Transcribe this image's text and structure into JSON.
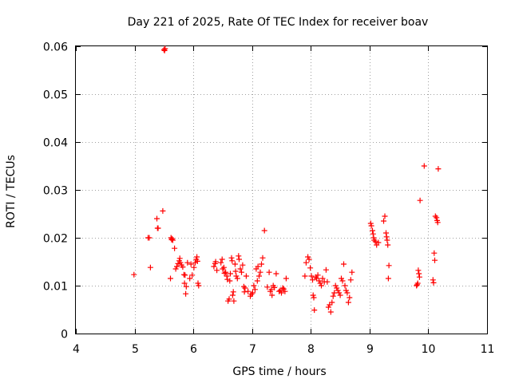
{
  "chart_data": {
    "type": "scatter",
    "title": "Day 221 of 2025, Rate Of TEC Index for receiver boav",
    "xlabel": "GPS time / hours",
    "ylabel": "ROTI / TECUs",
    "xlim": [
      4,
      11
    ],
    "ylim": [
      0,
      0.06
    ],
    "xticks": [
      4,
      5,
      6,
      7,
      8,
      9,
      10,
      11
    ],
    "xtick_labels": [
      "4",
      "5",
      "6",
      "7",
      "8",
      "9",
      "10",
      "11"
    ],
    "yticks": [
      0,
      0.01,
      0.02,
      0.03,
      0.04,
      0.05,
      0.06
    ],
    "ytick_labels": [
      "0",
      "0.01",
      "0.02",
      "0.03",
      "0.04",
      "0.05",
      "0.06"
    ],
    "grid": true,
    "marker": "plus",
    "color": "#ff0000",
    "series": [
      {
        "points": [
          [
            4.99,
            0.0123
          ],
          [
            5.23,
            0.02
          ],
          [
            5.25,
            0.02
          ],
          [
            5.27,
            0.0138
          ],
          [
            5.38,
            0.024
          ],
          [
            5.39,
            0.022
          ],
          [
            5.4,
            0.022
          ],
          [
            5.48,
            0.0256
          ],
          [
            5.5,
            0.0593
          ],
          [
            5.51,
            0.0591
          ],
          [
            5.52,
            0.0595
          ],
          [
            5.61,
            0.0115
          ],
          [
            5.62,
            0.02
          ],
          [
            5.63,
            0.0196
          ],
          [
            5.64,
            0.0198
          ],
          [
            5.65,
            0.0195
          ],
          [
            5.68,
            0.0178
          ],
          [
            5.7,
            0.0135
          ],
          [
            5.72,
            0.014
          ],
          [
            5.74,
            0.0146
          ],
          [
            5.76,
            0.0152
          ],
          [
            5.77,
            0.0157
          ],
          [
            5.78,
            0.0148
          ],
          [
            5.8,
            0.0143
          ],
          [
            5.82,
            0.0139
          ],
          [
            5.84,
            0.0123
          ],
          [
            5.85,
            0.0105
          ],
          [
            5.86,
            0.0122
          ],
          [
            5.87,
            0.0083
          ],
          [
            5.88,
            0.0098
          ],
          [
            5.9,
            0.0148
          ],
          [
            5.94,
            0.0115
          ],
          [
            5.96,
            0.0145
          ],
          [
            5.98,
            0.0122
          ],
          [
            6.01,
            0.0138
          ],
          [
            6.03,
            0.0148
          ],
          [
            6.05,
            0.0155
          ],
          [
            6.06,
            0.016
          ],
          [
            6.07,
            0.0151
          ],
          [
            6.08,
            0.0105
          ],
          [
            6.09,
            0.01
          ],
          [
            6.35,
            0.014
          ],
          [
            6.37,
            0.0146
          ],
          [
            6.38,
            0.015
          ],
          [
            6.4,
            0.0132
          ],
          [
            6.47,
            0.0148
          ],
          [
            6.49,
            0.0155
          ],
          [
            6.5,
            0.0135
          ],
          [
            6.52,
            0.0138
          ],
          [
            6.53,
            0.0126
          ],
          [
            6.55,
            0.0128
          ],
          [
            6.57,
            0.012
          ],
          [
            6.58,
            0.0113
          ],
          [
            6.59,
            0.0068
          ],
          [
            6.61,
            0.0072
          ],
          [
            6.62,
            0.011
          ],
          [
            6.63,
            0.0125
          ],
          [
            6.65,
            0.0158
          ],
          [
            6.66,
            0.0152
          ],
          [
            6.67,
            0.008
          ],
          [
            6.68,
            0.0087
          ],
          [
            6.69,
            0.0068
          ],
          [
            6.71,
            0.0145
          ],
          [
            6.72,
            0.013
          ],
          [
            6.73,
            0.012
          ],
          [
            6.75,
            0.0115
          ],
          [
            6.77,
            0.0162
          ],
          [
            6.78,
            0.0155
          ],
          [
            6.8,
            0.0135
          ],
          [
            6.82,
            0.0128
          ],
          [
            6.84,
            0.0143
          ],
          [
            6.86,
            0.0098
          ],
          [
            6.87,
            0.0087
          ],
          [
            6.88,
            0.0095
          ],
          [
            6.9,
            0.012
          ],
          [
            6.93,
            0.0088
          ],
          [
            6.97,
            0.0078
          ],
          [
            6.99,
            0.0082
          ],
          [
            7.01,
            0.0085
          ],
          [
            7.03,
            0.01
          ],
          [
            7.05,
            0.0092
          ],
          [
            7.07,
            0.0135
          ],
          [
            7.09,
            0.011
          ],
          [
            7.1,
            0.014
          ],
          [
            7.12,
            0.012
          ],
          [
            7.14,
            0.0128
          ],
          [
            7.16,
            0.0145
          ],
          [
            7.18,
            0.0158
          ],
          [
            7.21,
            0.0215
          ],
          [
            7.26,
            0.0097
          ],
          [
            7.29,
            0.0128
          ],
          [
            7.31,
            0.0088
          ],
          [
            7.33,
            0.0092
          ],
          [
            7.34,
            0.008
          ],
          [
            7.36,
            0.01
          ],
          [
            7.38,
            0.0096
          ],
          [
            7.41,
            0.0125
          ],
          [
            7.46,
            0.0088
          ],
          [
            7.48,
            0.009
          ],
          [
            7.5,
            0.0085
          ],
          [
            7.52,
            0.0095
          ],
          [
            7.54,
            0.0093
          ],
          [
            7.56,
            0.0088
          ],
          [
            7.58,
            0.0115
          ],
          [
            7.9,
            0.012
          ],
          [
            7.92,
            0.0148
          ],
          [
            7.95,
            0.016
          ],
          [
            7.97,
            0.0155
          ],
          [
            7.99,
            0.0137
          ],
          [
            8.01,
            0.012
          ],
          [
            8.03,
            0.0112
          ],
          [
            8.04,
            0.008
          ],
          [
            8.05,
            0.0075
          ],
          [
            8.06,
            0.0049
          ],
          [
            8.08,
            0.0118
          ],
          [
            8.1,
            0.0115
          ],
          [
            8.12,
            0.0122
          ],
          [
            8.14,
            0.011
          ],
          [
            8.16,
            0.0105
          ],
          [
            8.18,
            0.01
          ],
          [
            8.2,
            0.0115
          ],
          [
            8.23,
            0.0108
          ],
          [
            8.26,
            0.0133
          ],
          [
            8.28,
            0.0108
          ],
          [
            8.3,
            0.0055
          ],
          [
            8.32,
            0.006
          ],
          [
            8.34,
            0.0045
          ],
          [
            8.36,
            0.0065
          ],
          [
            8.38,
            0.0078
          ],
          [
            8.4,
            0.0085
          ],
          [
            8.42,
            0.01
          ],
          [
            8.44,
            0.0095
          ],
          [
            8.46,
            0.009
          ],
          [
            8.48,
            0.0085
          ],
          [
            8.5,
            0.008
          ],
          [
            8.52,
            0.0115
          ],
          [
            8.54,
            0.011
          ],
          [
            8.56,
            0.0145
          ],
          [
            8.58,
            0.01
          ],
          [
            8.6,
            0.009
          ],
          [
            8.62,
            0.0085
          ],
          [
            8.64,
            0.0065
          ],
          [
            8.66,
            0.0075
          ],
          [
            8.68,
            0.0112
          ],
          [
            8.7,
            0.0128
          ],
          [
            9.02,
            0.023
          ],
          [
            9.03,
            0.0225
          ],
          [
            9.05,
            0.0215
          ],
          [
            9.06,
            0.0208
          ],
          [
            9.07,
            0.02
          ],
          [
            9.08,
            0.0195
          ],
          [
            9.1,
            0.0192
          ],
          [
            9.12,
            0.0185
          ],
          [
            9.15,
            0.019
          ],
          [
            9.24,
            0.0235
          ],
          [
            9.26,
            0.0245
          ],
          [
            9.28,
            0.021
          ],
          [
            9.29,
            0.0202
          ],
          [
            9.3,
            0.0195
          ],
          [
            9.31,
            0.0185
          ],
          [
            9.32,
            0.0115
          ],
          [
            9.33,
            0.0142
          ],
          [
            9.8,
            0.01
          ],
          [
            9.81,
            0.0102
          ],
          [
            9.82,
            0.0105
          ],
          [
            9.83,
            0.0132
          ],
          [
            9.84,
            0.0125
          ],
          [
            9.85,
            0.0118
          ],
          [
            9.86,
            0.0278
          ],
          [
            9.93,
            0.035
          ],
          [
            10.08,
            0.0112
          ],
          [
            10.09,
            0.0106
          ],
          [
            10.1,
            0.0168
          ],
          [
            10.11,
            0.0153
          ],
          [
            10.12,
            0.0245
          ],
          [
            10.14,
            0.0242
          ],
          [
            10.15,
            0.0236
          ],
          [
            10.16,
            0.0232
          ],
          [
            10.17,
            0.0344
          ]
        ]
      }
    ]
  }
}
